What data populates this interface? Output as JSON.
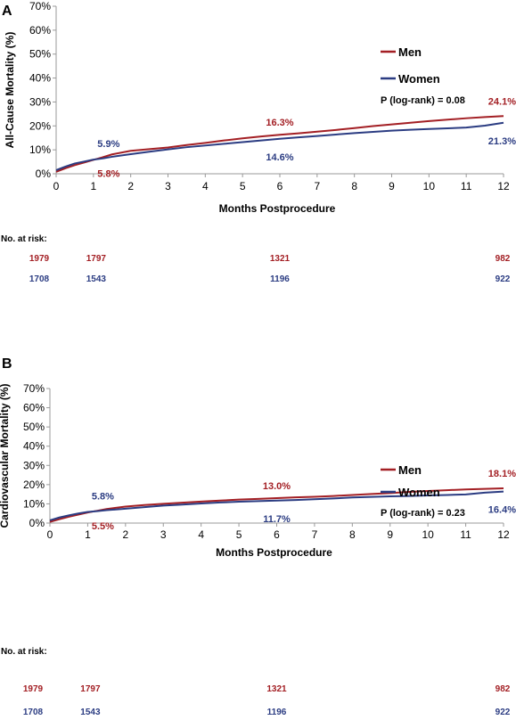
{
  "colors": {
    "men": "#A31F24",
    "women": "#2B3C82",
    "axis": "#999999",
    "text": "#000000"
  },
  "chart_data": [
    {
      "panel_label": "A",
      "type": "line",
      "ylabel": "All-Cause Mortality (%)",
      "xlabel": "Months Postprocedure",
      "ylim": [
        0,
        70
      ],
      "yticks": [
        "0%",
        "10%",
        "20%",
        "30%",
        "40%",
        "50%",
        "60%",
        "70%"
      ],
      "xlim": [
        0,
        12
      ],
      "xticks": [
        "0",
        "1",
        "2",
        "3",
        "4",
        "5",
        "6",
        "7",
        "8",
        "9",
        "10",
        "11",
        "12"
      ],
      "grid": false,
      "legend_position": "top-right",
      "pvalue": "P (log-rank) = 0.08",
      "series": [
        {
          "name": "Men",
          "x": [
            0,
            0.25,
            0.5,
            0.75,
            1,
            1.25,
            1.5,
            2,
            2.5,
            3,
            3.5,
            4,
            4.5,
            5,
            5.5,
            6,
            6.5,
            7,
            7.5,
            8,
            8.5,
            9,
            9.5,
            10,
            10.5,
            11,
            11.5,
            12
          ],
          "values": [
            0.8,
            2.3,
            3.6,
            4.7,
            5.8,
            6.9,
            8.1,
            9.6,
            10.3,
            11.0,
            12.0,
            12.9,
            13.9,
            14.8,
            15.6,
            16.3,
            16.9,
            17.6,
            18.3,
            19.1,
            19.9,
            20.6,
            21.3,
            22.0,
            22.6,
            23.2,
            23.7,
            24.1
          ]
        },
        {
          "name": "Women",
          "x": [
            0,
            0.25,
            0.5,
            0.75,
            1,
            1.25,
            1.5,
            2,
            2.5,
            3,
            3.5,
            4,
            4.5,
            5,
            5.5,
            6,
            6.5,
            7,
            7.5,
            8,
            8.5,
            9,
            9.5,
            10,
            10.5,
            11,
            11.5,
            12
          ],
          "values": [
            1.5,
            3.0,
            4.3,
            5.1,
            5.9,
            6.4,
            7.1,
            8.2,
            9.2,
            10.2,
            11.1,
            11.8,
            12.5,
            13.2,
            13.9,
            14.6,
            15.2,
            15.8,
            16.4,
            17.0,
            17.5,
            18.0,
            18.4,
            18.7,
            19.0,
            19.3,
            20.1,
            21.3
          ]
        }
      ],
      "annotations": [
        {
          "text": "5.8%",
          "series": "Men",
          "x": 1,
          "y": 5.8
        },
        {
          "text": "5.9%",
          "series": "Women",
          "x": 1,
          "y": 5.9
        },
        {
          "text": "16.3%",
          "series": "Men",
          "x": 6,
          "y": 16.3
        },
        {
          "text": "14.6%",
          "series": "Women",
          "x": 6,
          "y": 14.6
        },
        {
          "text": "24.1%",
          "series": "Men",
          "x": 12,
          "y": 24.1
        },
        {
          "text": "21.3%",
          "series": "Women",
          "x": 12,
          "y": 21.3
        }
      ],
      "at_risk": {
        "label": "No. at risk:",
        "men": [
          "1979",
          "1797",
          "1321",
          "982"
        ],
        "women": [
          "1708",
          "1543",
          "1196",
          "922"
        ],
        "months": [
          0,
          1,
          6,
          12
        ]
      }
    },
    {
      "panel_label": "B",
      "type": "line",
      "ylabel": "Cardiovascular Mortality (%)",
      "xlabel": "Months Postprocedure",
      "ylim": [
        0,
        70
      ],
      "yticks": [
        "0%",
        "10%",
        "20%",
        "30%",
        "40%",
        "50%",
        "60%",
        "70%"
      ],
      "xlim": [
        0,
        12
      ],
      "xticks": [
        "0",
        "1",
        "2",
        "3",
        "4",
        "5",
        "6",
        "7",
        "8",
        "9",
        "10",
        "11",
        "12"
      ],
      "grid": false,
      "legend_position": "top-right",
      "pvalue": "P (log-rank) = 0.23",
      "series": [
        {
          "name": "Men",
          "x": [
            0,
            0.25,
            0.5,
            0.75,
            1,
            1.25,
            1.5,
            2,
            2.5,
            3,
            3.5,
            4,
            4.5,
            5,
            5.5,
            6,
            6.5,
            7,
            7.5,
            8,
            8.5,
            9,
            9.5,
            10,
            10.5,
            11,
            11.5,
            12
          ],
          "values": [
            0.6,
            2.0,
            3.3,
            4.4,
            5.5,
            6.4,
            7.3,
            8.6,
            9.4,
            10.0,
            10.6,
            11.2,
            11.7,
            12.2,
            12.6,
            13.0,
            13.4,
            13.7,
            14.1,
            14.6,
            15.1,
            15.6,
            16.2,
            16.7,
            17.1,
            17.5,
            17.8,
            18.1
          ]
        },
        {
          "name": "Women",
          "x": [
            0,
            0.25,
            0.5,
            0.75,
            1,
            1.25,
            1.5,
            2,
            2.5,
            3,
            3.5,
            4,
            4.5,
            5,
            5.5,
            6,
            6.5,
            7,
            7.5,
            8,
            8.5,
            9,
            9.5,
            10,
            10.5,
            11,
            11.5,
            12
          ],
          "values": [
            1.4,
            2.9,
            4.0,
            5.0,
            5.8,
            6.2,
            6.7,
            7.5,
            8.3,
            9.1,
            9.6,
            10.2,
            10.7,
            11.1,
            11.4,
            11.7,
            12.0,
            12.4,
            12.8,
            13.3,
            13.6,
            13.9,
            14.1,
            14.4,
            14.6,
            14.9,
            15.8,
            16.4
          ]
        }
      ],
      "annotations": [
        {
          "text": "5.5%",
          "series": "Men",
          "x": 1,
          "y": 5.5
        },
        {
          "text": "5.8%",
          "series": "Women",
          "x": 1,
          "y": 5.8
        },
        {
          "text": "13.0%",
          "series": "Men",
          "x": 6,
          "y": 13.0
        },
        {
          "text": "11.7%",
          "series": "Women",
          "x": 6,
          "y": 11.7
        },
        {
          "text": "18.1%",
          "series": "Men",
          "x": 12,
          "y": 18.1
        },
        {
          "text": "16.4%",
          "series": "Women",
          "x": 12,
          "y": 16.4
        }
      ],
      "at_risk": {
        "label": "No. at risk:",
        "men": [
          "1979",
          "1797",
          "1321",
          "982"
        ],
        "women": [
          "1708",
          "1543",
          "1196",
          "922"
        ],
        "months": [
          0,
          1,
          6,
          12
        ]
      }
    }
  ]
}
